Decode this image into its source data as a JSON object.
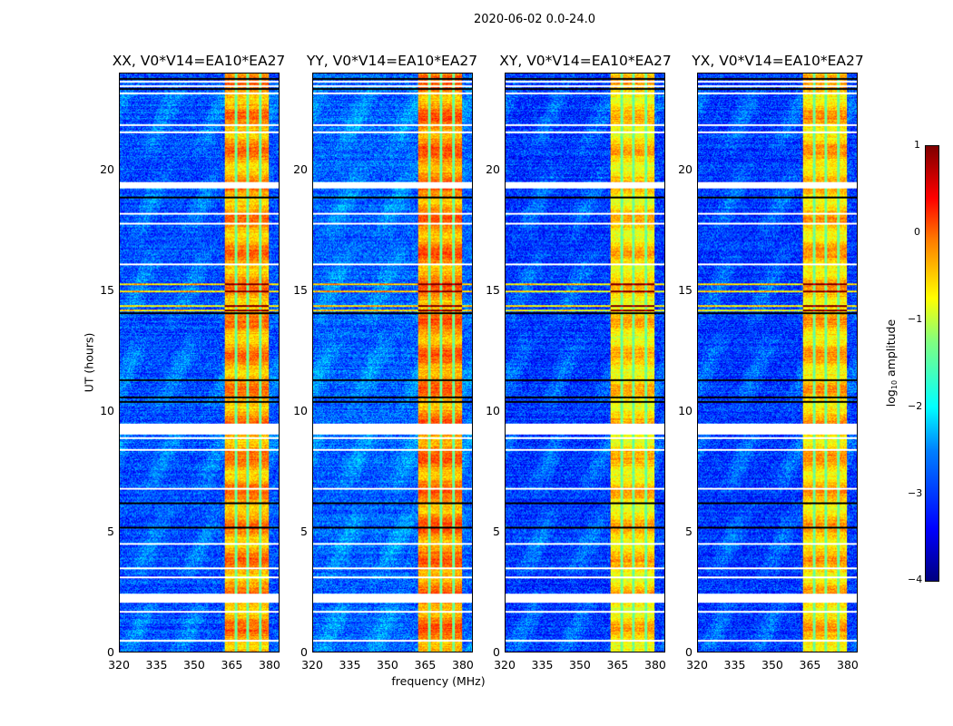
{
  "chart_data": {
    "type": "heatmap",
    "title": "2020-06-02 0.0-24.0",
    "xlabel": "frequency (MHz)",
    "ylabel": "UT (hours)",
    "xlim": [
      320,
      384
    ],
    "ylim": [
      0,
      24
    ],
    "xticks": [
      "320",
      "335",
      "350",
      "365",
      "380"
    ],
    "yticks": [
      "0",
      "5",
      "10",
      "15",
      "20"
    ],
    "colorbar": {
      "label_main": "log",
      "label_sub": "10",
      "label_rest": " amplitude",
      "range": [
        -4,
        1
      ],
      "ticks": [
        "1",
        "0",
        "−1",
        "−2",
        "−3",
        "−4"
      ],
      "colormap": "jet"
    },
    "panels": [
      {
        "title": "XX, V0*V14=EA10*EA27",
        "background_log_amp": -3.0,
        "band_log_amp": -0.4
      },
      {
        "title": "YY, V0*V14=EA10*EA27",
        "background_log_amp": -2.9,
        "band_log_amp": -0.3
      },
      {
        "title": "XY, V0*V14=EA10*EA27",
        "background_log_amp": -3.1,
        "band_log_amp": -0.7
      },
      {
        "title": "YX, V0*V14=EA10*EA27",
        "background_log_amp": -3.1,
        "band_log_amp": -0.6
      }
    ],
    "bright_band_mhz": [
      362,
      380
    ],
    "band_dividers_mhz": [
      366.5,
      371.5,
      376.5
    ],
    "flagged_times_hours": [
      0.5,
      1.7,
      2.1,
      2.2,
      2.3,
      3.1,
      3.5,
      4.5,
      6.8,
      8.4,
      8.9,
      9.1,
      9.2,
      9.3,
      9.4,
      16.1,
      17.8,
      18.2,
      19.3,
      19.4,
      21.6,
      21.9,
      23.2,
      23.5,
      23.7
    ],
    "dark_times_hours": [
      5.2,
      6.2,
      10.4,
      10.6,
      11.3,
      14.1,
      18.9,
      23.4,
      23.8
    ],
    "rfi_times_hours": [
      14.2,
      14.4,
      15.0,
      15.3
    ]
  }
}
